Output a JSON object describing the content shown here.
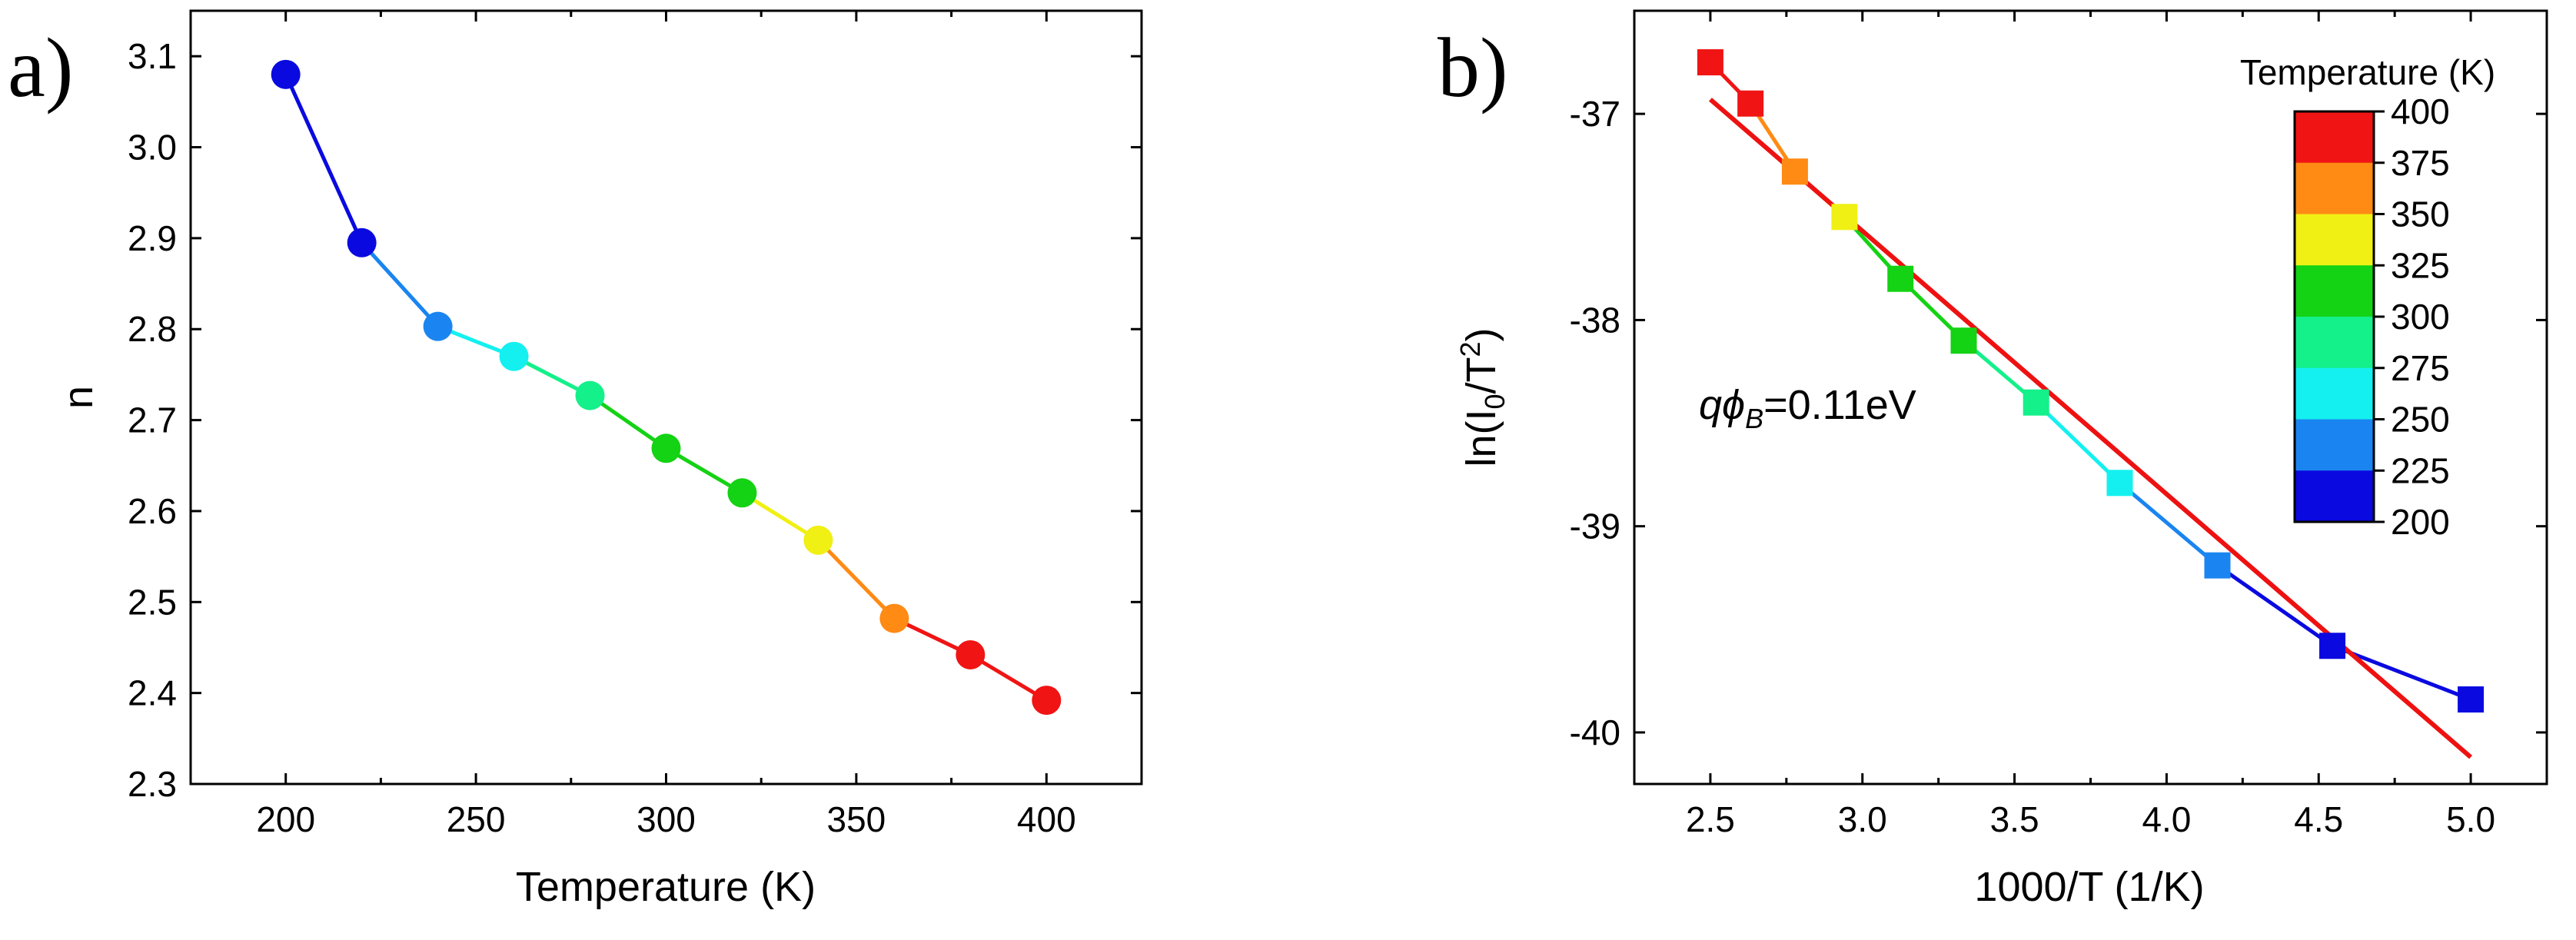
{
  "chart_data": [
    {
      "panel": "a)",
      "type": "line",
      "xlabel": "Temperature (K)",
      "ylabel": "n",
      "xlim": [
        175,
        425
      ],
      "ylim": [
        2.3,
        3.15
      ],
      "xticks": [
        200,
        250,
        300,
        350,
        400
      ],
      "yticks": [
        2.3,
        2.4,
        2.5,
        2.6,
        2.7,
        2.8,
        2.9,
        3.0,
        3.1
      ],
      "xtick_labels": [
        "200",
        "250",
        "300",
        "350",
        "400"
      ],
      "ytick_labels": [
        "2.3",
        "2.4",
        "2.5",
        "2.6",
        "2.7",
        "2.8",
        "2.9",
        "3.0",
        "3.1"
      ],
      "x": [
        200,
        220,
        240,
        260,
        280,
        300,
        320,
        340,
        360,
        380,
        400
      ],
      "y": [
        3.08,
        2.895,
        2.803,
        2.77,
        2.727,
        2.669,
        2.62,
        2.568,
        2.482,
        2.442,
        2.392
      ],
      "colors": [
        "#0a0ae0",
        "#0a0ae0",
        "#1a85f0",
        "#14f0f0",
        "#14f08a",
        "#14d214",
        "#14d214",
        "#f0f014",
        "#ff8a14",
        "#f01414",
        "#f01414"
      ]
    },
    {
      "panel": "b)",
      "type": "line",
      "xlabel": "1000/T (1/K)",
      "ylabel": "ln(I0/T2)",
      "ylabel_parts": {
        "pre": "ln(I",
        "sub": "0",
        "mid": "/T",
        "sup": "2",
        "post": ")"
      },
      "xlim": [
        2.25,
        5.25
      ],
      "ylim": [
        -40.25,
        -36.5
      ],
      "xticks": [
        2.5,
        3.0,
        3.5,
        4.0,
        4.5,
        5.0
      ],
      "yticks": [
        -40,
        -39,
        -38,
        -37
      ],
      "xtick_labels": [
        "2.5",
        "3.0",
        "3.5",
        "4.0",
        "4.5",
        "5.0"
      ],
      "ytick_labels": [
        "-40",
        "-39",
        "-38",
        "-37"
      ],
      "x": [
        2.5,
        2.632,
        2.778,
        2.941,
        3.125,
        3.333,
        3.571,
        3.846,
        4.167,
        4.545,
        5.0
      ],
      "y": [
        -36.75,
        -36.95,
        -37.28,
        -37.5,
        -37.8,
        -38.1,
        -38.4,
        -38.79,
        -39.19,
        -39.58,
        -39.84
      ],
      "colors": [
        "#f01414",
        "#f01414",
        "#ff8a14",
        "#f0f014",
        "#14d214",
        "#14d214",
        "#14f08a",
        "#14f0f0",
        "#1a85f0",
        "#0a0ae0",
        "#0a0ae0"
      ],
      "fit": {
        "x": [
          2.5,
          5.0
        ],
        "y": [
          -36.93,
          -40.12
        ],
        "color": "#ee1111"
      },
      "annotation": {
        "q": "q",
        "phi": "ϕ",
        "sub": "B",
        "rest": "=0.11eV"
      },
      "colorbar": {
        "title": "Temperature (K)",
        "labels": [
          "400",
          "375",
          "350",
          "325",
          "300",
          "275",
          "250",
          "225",
          "200"
        ],
        "colors": [
          "#f01414",
          "#ff8a14",
          "#f0f014",
          "#14d214",
          "#14f08a",
          "#14f0f0",
          "#1a85f0",
          "#0a0ae0"
        ]
      }
    }
  ]
}
